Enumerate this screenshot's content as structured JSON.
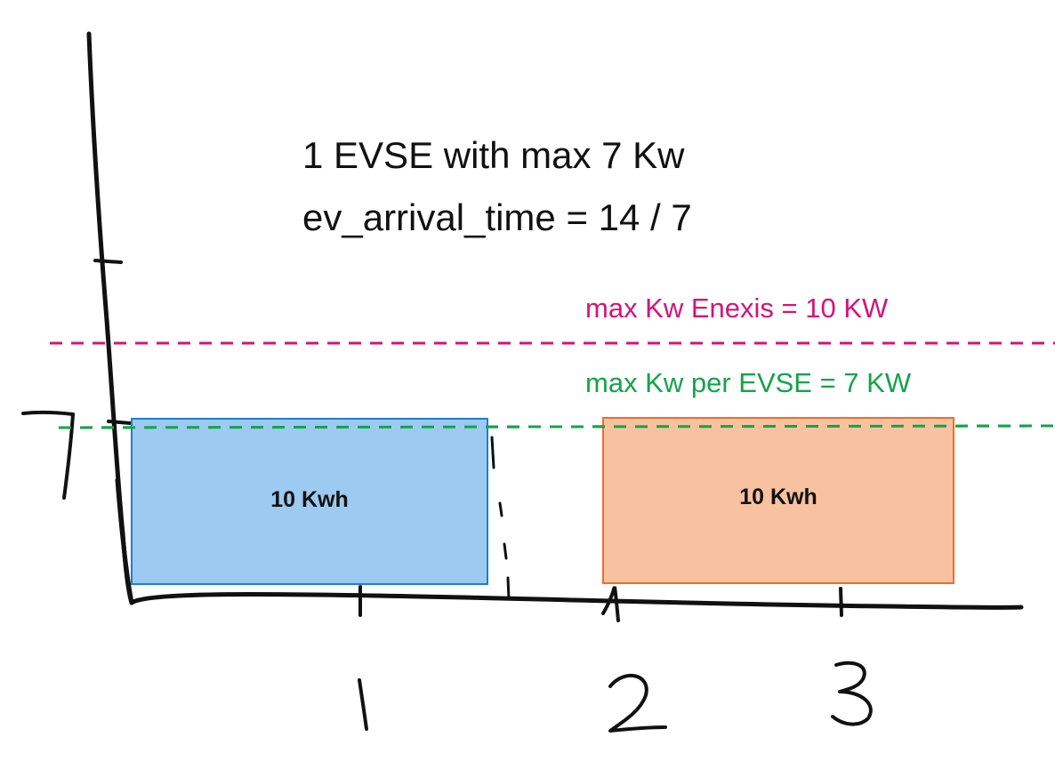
{
  "title_line1": "1 EVSE with max  7 Kw",
  "title_line2": "ev_arrival_time = 14 / 7",
  "limits": [
    {
      "label": "max Kw Enexis = 10 KW",
      "value_kw": 10,
      "color": "#d4147a"
    },
    {
      "label": "max Kw per EVSE = 7 KW",
      "value_kw": 7,
      "color": "#13a44a"
    }
  ],
  "blocks": [
    {
      "label": "10 Kwh",
      "fill": "#9ccaf0",
      "stroke": "#1d7fd4"
    },
    {
      "label": "10 Kwh",
      "fill": "#f8c1a0",
      "stroke": "#ec6e2a"
    }
  ],
  "axis": {
    "y_tick_label": "7",
    "x_tick_labels": [
      "1",
      "2",
      "3"
    ]
  }
}
